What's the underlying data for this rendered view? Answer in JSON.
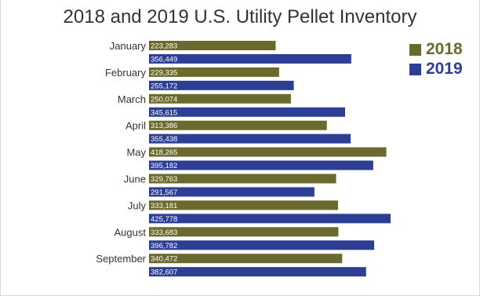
{
  "colors": {
    "series_2018": "#6a6a2e",
    "series_2019": "#2d3f94"
  },
  "chart_data": {
    "type": "bar",
    "orientation": "horizontal",
    "title": "2018 and 2019 U.S. Utility Pellet Inventory",
    "categories": [
      "January",
      "February",
      "March",
      "April",
      "May",
      "June",
      "July",
      "August",
      "September"
    ],
    "series": [
      {
        "name": "2018",
        "color": "#6a6a2e",
        "values": [
          223283,
          229335,
          250074,
          313386,
          418265,
          329763,
          333181,
          333683,
          340472
        ]
      },
      {
        "name": "2019",
        "color": "#2d3f94",
        "values": [
          356449,
          255172,
          345615,
          355438,
          395182,
          291567,
          425778,
          396782,
          382607
        ]
      }
    ],
    "value_labels": [
      [
        "223,283",
        "229,335",
        "250,074",
        "313,386",
        "418,265",
        "329,763",
        "333,181",
        "333,683",
        "340,472"
      ],
      [
        "356,449",
        "255,172",
        "345,615",
        "355,438",
        "395,182",
        "291,567",
        "425,778",
        "396,782",
        "382,607"
      ]
    ],
    "xlim": [
      0,
      425778
    ],
    "legend_position": "top-right",
    "grid": false
  }
}
